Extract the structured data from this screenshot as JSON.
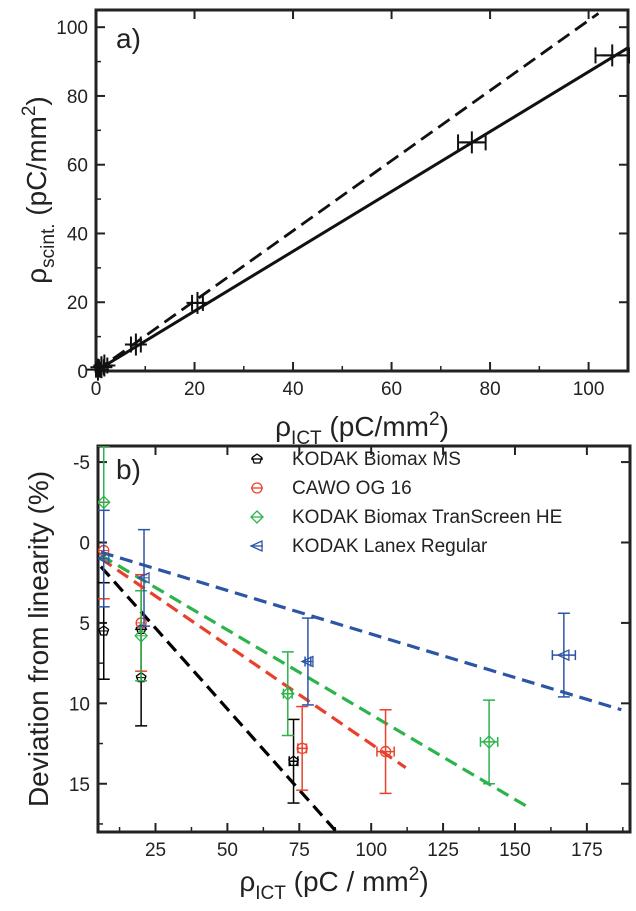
{
  "chart_data": [
    {
      "type": "line",
      "panel_label": "a)",
      "xlabel": {
        "symbol": "ρ",
        "sub": "ICT",
        "rest": " (pC/mm",
        "sup": "2",
        "close": ")"
      },
      "ylabel": {
        "symbol": "ρ",
        "sub": "scint.",
        "rest": "(pC/mm",
        "sup": "2",
        "close": ")"
      },
      "xlim": [
        0,
        108
      ],
      "ylim": [
        0,
        105
      ],
      "xticks": [
        0,
        20,
        40,
        60,
        80,
        100
      ],
      "yticks": [
        0,
        20,
        40,
        60,
        80,
        100
      ],
      "grid": false,
      "fit_solid": {
        "x": [
          0,
          108
        ],
        "y": [
          0,
          94
        ]
      },
      "identity_dashed": {
        "x": [
          0,
          102
        ],
        "y": [
          0,
          104
        ]
      },
      "points": [
        {
          "x": 0.4,
          "y": 0.4,
          "xerr": 0.4
        },
        {
          "x": 1.1,
          "y": 1.1,
          "xerr": 0.5
        },
        {
          "x": 1.7,
          "y": 1.6,
          "xerr": 0.6
        },
        {
          "x": 8.1,
          "y": 7.7,
          "xerr": 1.0
        },
        {
          "x": 20.6,
          "y": 19.8,
          "xerr": 1.1
        },
        {
          "x": 76.3,
          "y": 66.5,
          "xerr": 2.8
        },
        {
          "x": 104.8,
          "y": 91.8,
          "xerr": 3.4
        }
      ]
    },
    {
      "type": "scatter",
      "panel_label": "b)",
      "xlabel": {
        "symbol": "ρ",
        "sub": "ICT",
        "rest": " (pC / mm",
        "sup": "2",
        "close": ")"
      },
      "ylabel": "Deviation from linearity (%)",
      "xlim": [
        5,
        190
      ],
      "ylim": [
        18,
        -6
      ],
      "y_inverted": true,
      "xticks": [
        25,
        50,
        75,
        100,
        125,
        150,
        175
      ],
      "yticks": [
        -5,
        0,
        5,
        10,
        15
      ],
      "ytick_labels": [
        "-5",
        "0",
        "5",
        "10",
        "15"
      ],
      "grid": false,
      "legend_position": "top-right",
      "series": [
        {
          "name": "KODAK Biomax MS",
          "color": "#000000",
          "marker": "pentagon",
          "points": [
            {
              "x": 7,
              "y": 5.5,
              "xerr": 0,
              "yerr": 3.0
            },
            {
              "x": 20,
              "y": 8.4,
              "xerr": 0,
              "yerr": 3.0
            },
            {
              "x": 20,
              "y": 5.4,
              "xerr": 0,
              "yerr": 0
            },
            {
              "x": 73,
              "y": 13.6,
              "xerr": 1.5,
              "yerr": 2.6
            }
          ],
          "fit": {
            "x": [
              6,
              88
            ],
            "y": [
              1.5,
              18
            ]
          }
        },
        {
          "name": "CAWO OG 16",
          "color": "#e8412b",
          "marker": "circle-plus",
          "points": [
            {
              "x": 7,
              "y": 0.5,
              "xerr": 0,
              "yerr": 3.0
            },
            {
              "x": 20,
              "y": 5.0,
              "xerr": 0,
              "yerr": 3.0
            },
            {
              "x": 76,
              "y": 12.8,
              "xerr": 1.5,
              "yerr": 2.6
            },
            {
              "x": 105,
              "y": 13.0,
              "xerr": 3.0,
              "yerr": 2.6
            }
          ],
          "fit": {
            "x": [
              6,
              112
            ],
            "y": [
              1.0,
              14.0
            ]
          }
        },
        {
          "name": "KODAK Biomax TranScreen HE",
          "color": "#2bb44b",
          "marker": "diamond-plus",
          "points": [
            {
              "x": 7,
              "y": -2.5,
              "xerr": 0,
              "yerr": 3.5
            },
            {
              "x": 20,
              "y": 5.8,
              "xerr": 0,
              "yerr": 2.8
            },
            {
              "x": 71,
              "y": 9.4,
              "xerr": 1.5,
              "yerr": 2.6
            },
            {
              "x": 141,
              "y": 12.4,
              "xerr": 3.0,
              "yerr": 2.6
            }
          ],
          "fit": {
            "x": [
              6,
              155
            ],
            "y": [
              0.8,
              16.5
            ]
          }
        },
        {
          "name": "KODAK Lanex Regular",
          "color": "#2c55a6",
          "marker": "triangle-left",
          "points": [
            {
              "x": 7,
              "y": 1.0,
              "xerr": 0,
              "yerr": 3.0
            },
            {
              "x": 21,
              "y": 2.2,
              "xerr": 0,
              "yerr": 3.0
            },
            {
              "x": 78,
              "y": 7.4,
              "xerr": 1.0,
              "yerr": 2.7
            },
            {
              "x": 167,
              "y": 7.0,
              "xerr": 4.0,
              "yerr": 2.6
            }
          ],
          "fit": {
            "x": [
              6,
              187
            ],
            "y": [
              0.6,
              10.4
            ]
          }
        }
      ]
    }
  ]
}
